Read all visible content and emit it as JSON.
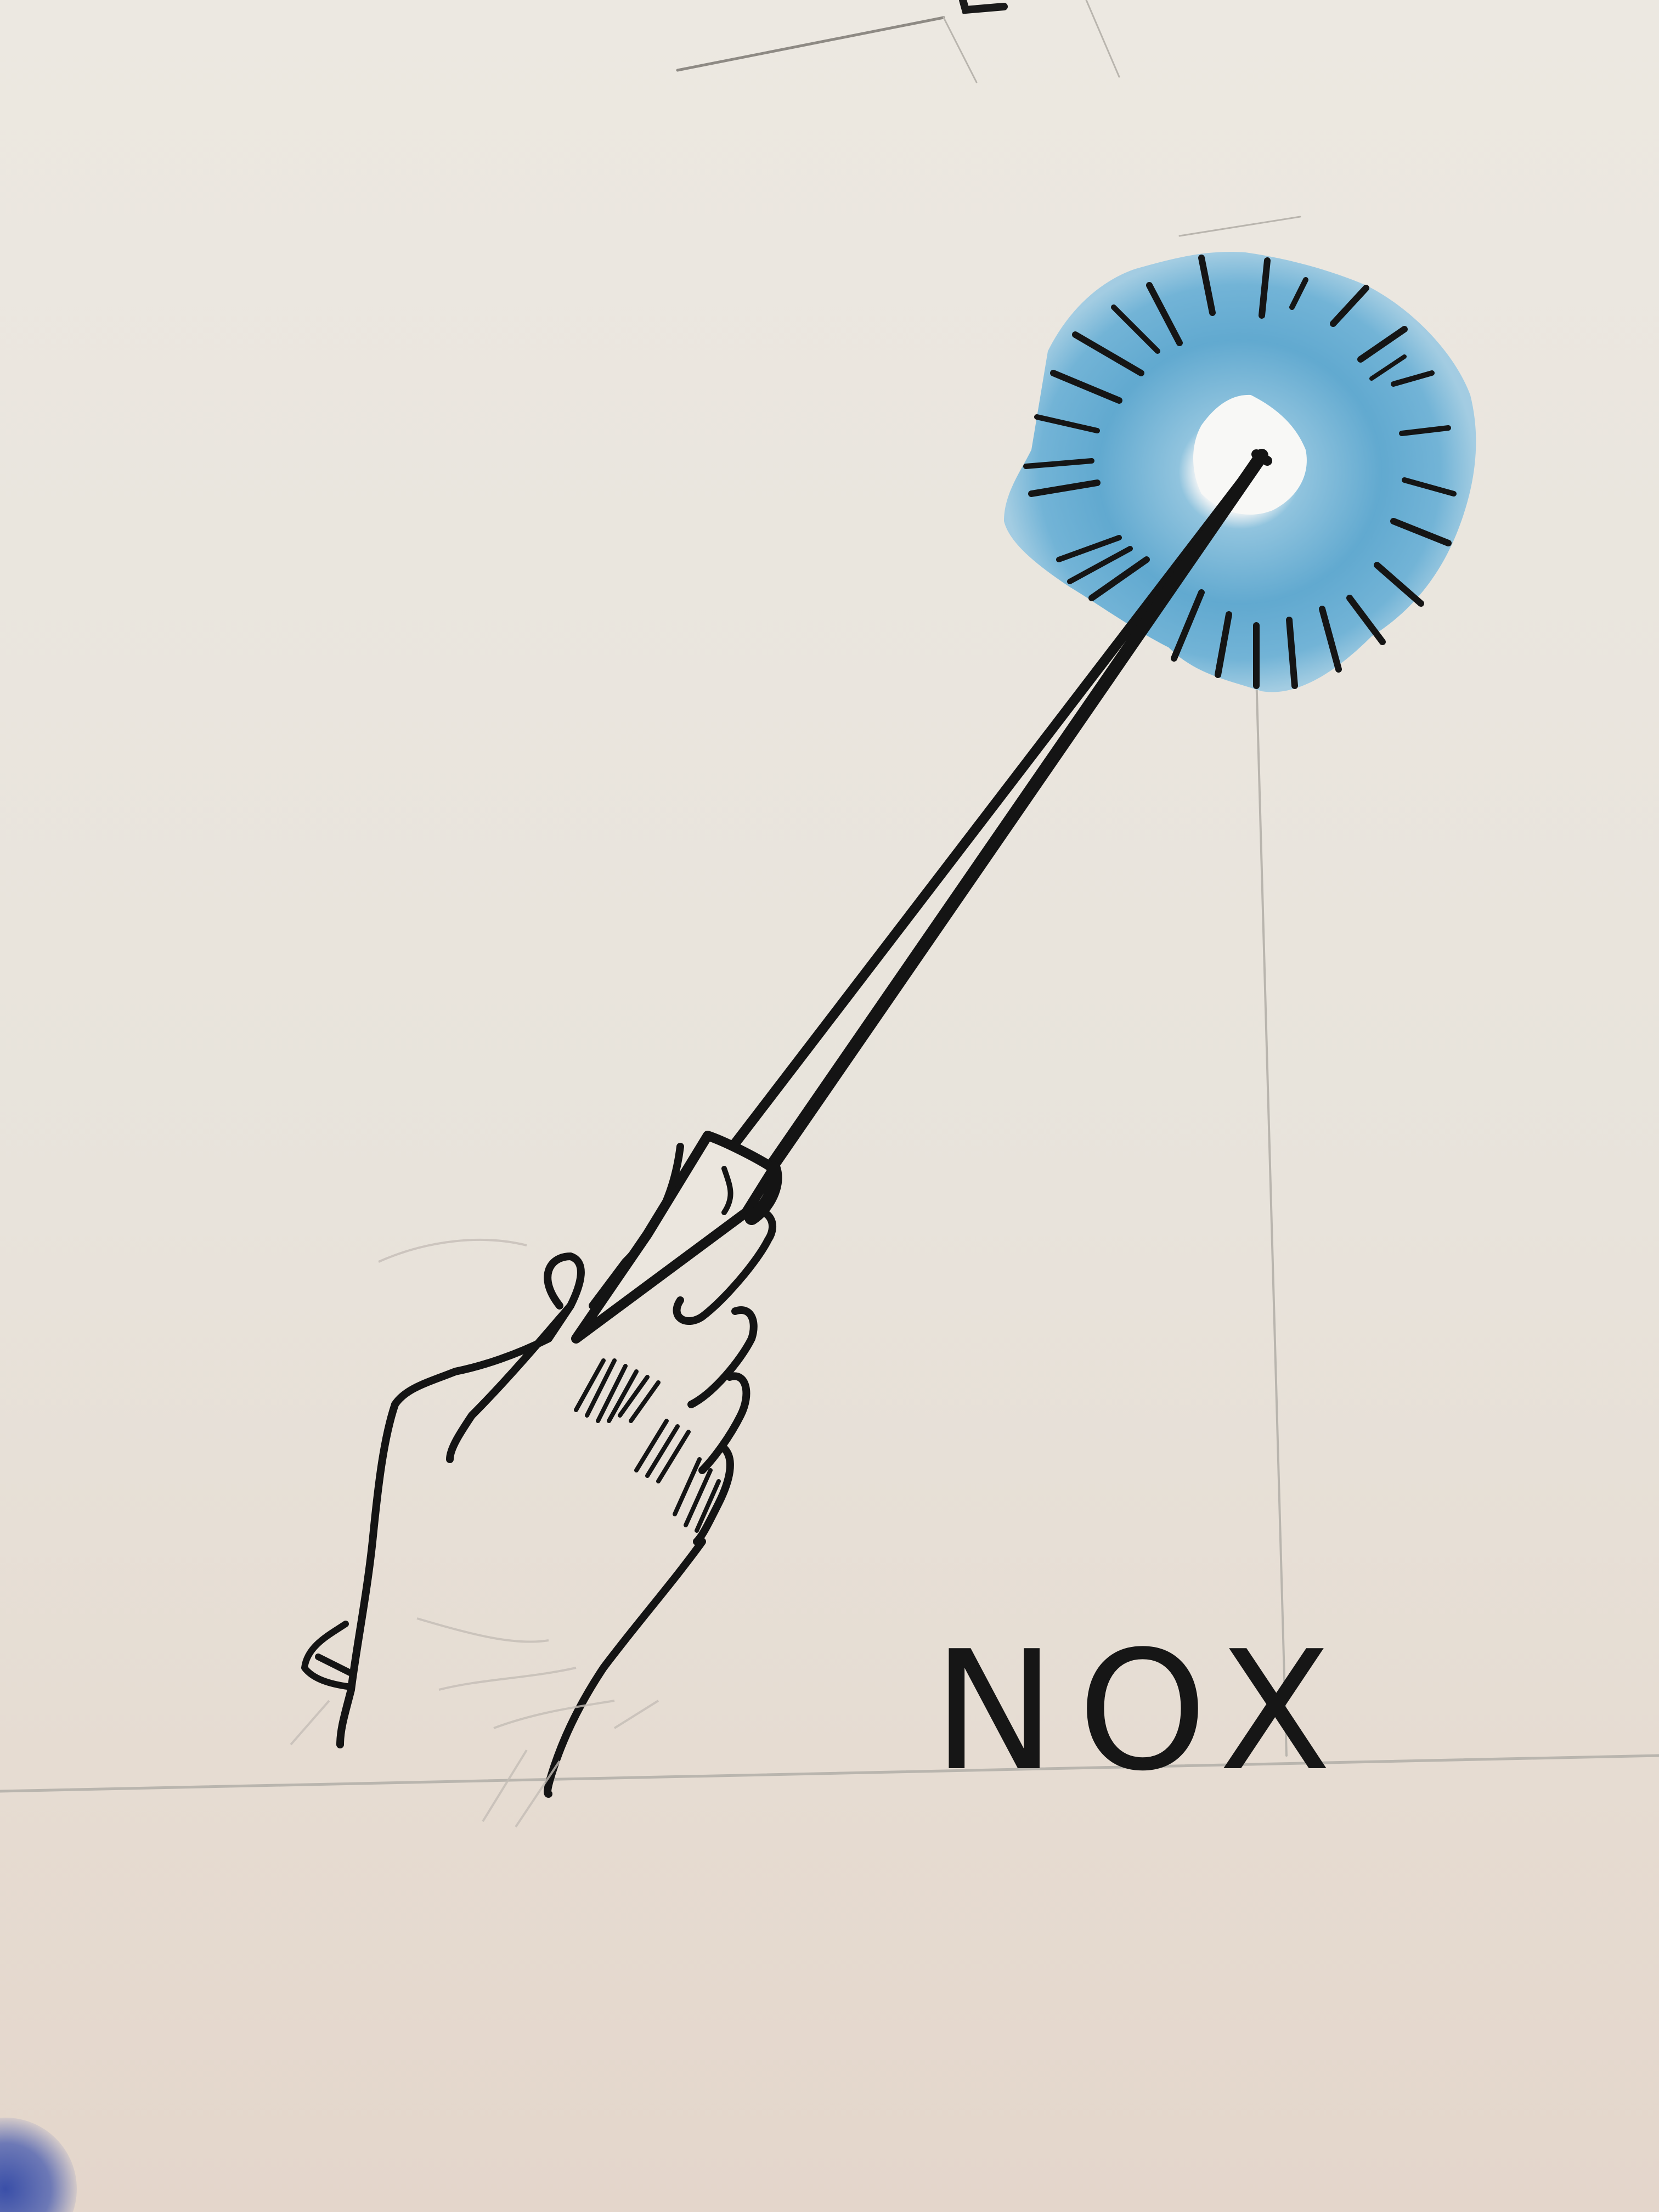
{
  "drawing": {
    "caption": "NOX",
    "subject_icon": "hand-holding-wand-icon",
    "glow_icon": "wand-light-burst-icon",
    "colors": {
      "paper": "#ebe6de",
      "ink": "#161616",
      "glow": "#5fa8cf",
      "pencil": "#b9b5ae"
    }
  }
}
